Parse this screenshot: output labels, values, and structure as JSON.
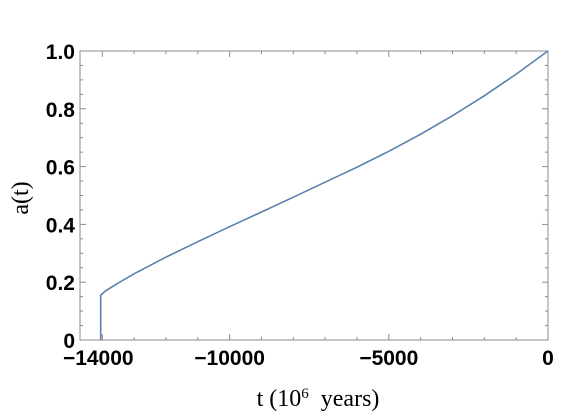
{
  "chart_data": {
    "type": "line",
    "title": "",
    "xlabel": {
      "prefix": "t (10",
      "exponent": "6",
      "suffix": "  years)"
    },
    "ylabel": "a(t)",
    "xlim": [
      -14700,
      0
    ],
    "ylim": [
      0,
      1.0
    ],
    "grid": false,
    "x_ticks": [
      {
        "value": -14000,
        "label": "−14000"
      },
      {
        "value": -10000,
        "label": "−10000"
      },
      {
        "value": -5000,
        "label": "−5000"
      },
      {
        "value": 0,
        "label": "0"
      }
    ],
    "y_ticks": [
      {
        "value": 0,
        "label": "0"
      },
      {
        "value": 0.2,
        "label": "0.2"
      },
      {
        "value": 0.4,
        "label": "0.4"
      },
      {
        "value": 0.6,
        "label": "0.6"
      },
      {
        "value": 0.8,
        "label": "0.8"
      },
      {
        "value": 1.0,
        "label": "1.0"
      }
    ],
    "series": [
      {
        "color": "#5b80ad",
        "x": [
          -14050,
          -14050,
          -13900,
          -13500,
          -13000,
          -12000,
          -11000,
          -10000,
          -9000,
          -8000,
          -7000,
          -6000,
          -5000,
          -4000,
          -3000,
          -2000,
          -1000,
          0
        ],
        "y": [
          0,
          0.155,
          0.17,
          0.197,
          0.229,
          0.287,
          0.34,
          0.392,
          0.443,
          0.494,
          0.546,
          0.598,
          0.653,
          0.712,
          0.776,
          0.845,
          0.92,
          1.0
        ]
      }
    ]
  }
}
